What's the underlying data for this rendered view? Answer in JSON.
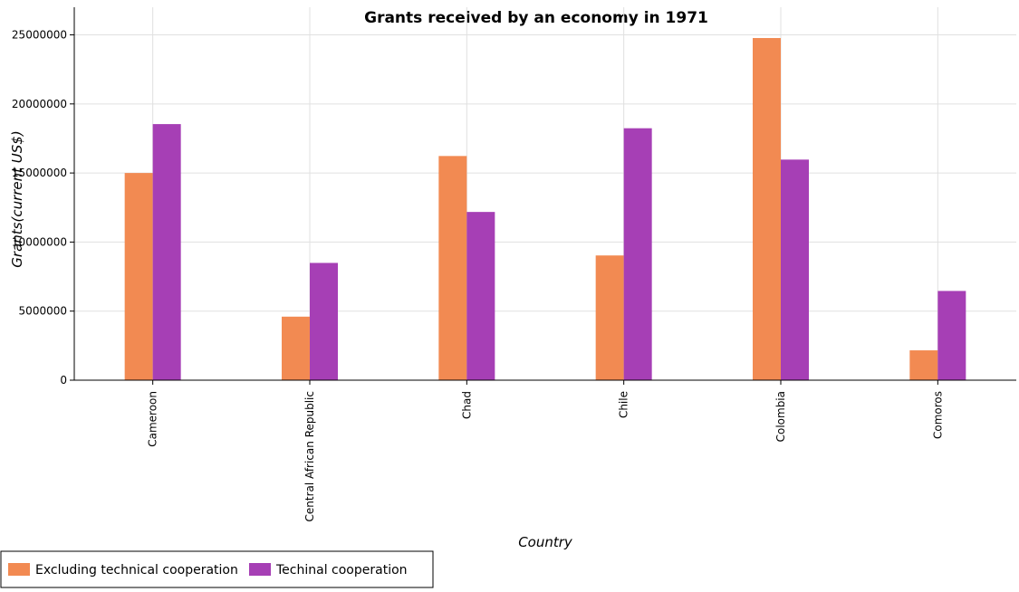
{
  "chart_data": {
    "type": "bar",
    "title": "Grants received by an economy in 1971",
    "xlabel": "Country",
    "ylabel": "Grants(current US$)",
    "categories": [
      "Cameroon",
      "Central African Republic",
      "Chad",
      "Chile",
      "Colombia",
      "Comoros"
    ],
    "series": [
      {
        "name": "Excluding technical cooperation",
        "color": "#f28a52",
        "values": [
          15000000,
          4600000,
          16230000,
          9030000,
          24770000,
          2160000
        ]
      },
      {
        "name": "Techinal cooperation",
        "color": "#a63fb5",
        "values": [
          18540000,
          8490000,
          12180000,
          18240000,
          15970000,
          6460000
        ]
      }
    ],
    "ylim": [
      0,
      27000000
    ],
    "yticks": [
      0,
      5000000,
      10000000,
      15000000,
      20000000,
      25000000
    ],
    "ytick_labels": [
      "0",
      "5000000",
      "10000000",
      "15000000",
      "20000000",
      "25000000"
    ],
    "grid": true,
    "legend_placement": "bottom-left"
  }
}
